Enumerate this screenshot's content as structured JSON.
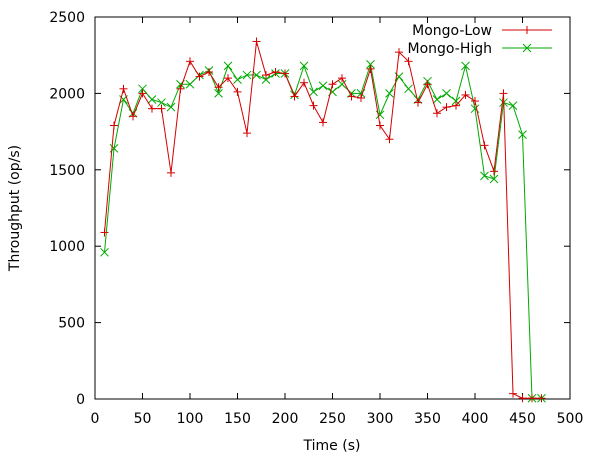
{
  "chart_data": {
    "type": "line",
    "title": "",
    "xlabel": "Time (s)",
    "ylabel": "Throughput (op/s)",
    "xlim": [
      0,
      500
    ],
    "ylim": [
      0,
      2500
    ],
    "xticks": [
      0,
      50,
      100,
      150,
      200,
      250,
      300,
      350,
      400,
      450,
      500
    ],
    "yticks": [
      0,
      500,
      1000,
      1500,
      2000,
      2500
    ],
    "grid": false,
    "legend_position": "top-right",
    "series": [
      {
        "name": "Mongo-Low",
        "color": "#d40000",
        "marker": "plus",
        "x": [
          10,
          20,
          30,
          40,
          50,
          60,
          70,
          80,
          90,
          100,
          110,
          120,
          130,
          140,
          150,
          160,
          170,
          180,
          190,
          200,
          210,
          220,
          230,
          240,
          250,
          260,
          270,
          280,
          290,
          300,
          310,
          320,
          330,
          340,
          350,
          360,
          370,
          380,
          390,
          400,
          410,
          420,
          430,
          440,
          450,
          460,
          470
        ],
        "y": [
          1090,
          1790,
          2030,
          1850,
          2000,
          1900,
          1900,
          1480,
          2030,
          2210,
          2110,
          2140,
          2040,
          2100,
          2010,
          1740,
          2340,
          2120,
          2140,
          2130,
          1980,
          2070,
          1920,
          1810,
          2060,
          2100,
          1980,
          1970,
          2160,
          1790,
          1700,
          2270,
          2210,
          1940,
          2060,
          1870,
          1910,
          1920,
          1990,
          1950,
          1660,
          1490,
          2000,
          35,
          5,
          5,
          5
        ]
      },
      {
        "name": "Mongo-High",
        "color": "#00aa00",
        "marker": "cross",
        "x": [
          10,
          20,
          30,
          40,
          50,
          60,
          70,
          80,
          90,
          100,
          110,
          120,
          130,
          140,
          150,
          160,
          170,
          180,
          190,
          200,
          210,
          220,
          230,
          240,
          250,
          260,
          270,
          280,
          290,
          300,
          310,
          320,
          330,
          340,
          350,
          360,
          370,
          380,
          390,
          400,
          410,
          420,
          430,
          440,
          450,
          460,
          470
        ],
        "y": [
          960,
          1640,
          1960,
          1870,
          2030,
          1960,
          1940,
          1910,
          2060,
          2060,
          2120,
          2150,
          2000,
          2180,
          2090,
          2120,
          2120,
          2090,
          2130,
          2130,
          1990,
          2180,
          2010,
          2050,
          2010,
          2060,
          2000,
          2000,
          2190,
          1860,
          2000,
          2110,
          2030,
          1960,
          2080,
          1960,
          2000,
          1950,
          2180,
          1900,
          1460,
          1440,
          1940,
          1920,
          1730,
          5,
          5
        ]
      }
    ]
  }
}
